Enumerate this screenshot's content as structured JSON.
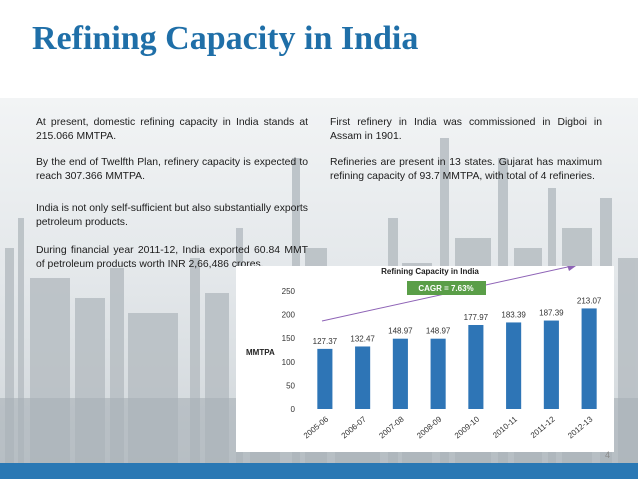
{
  "slide": {
    "title": "Refining Capacity in India",
    "left_column": [
      "At present, domestic refining capacity in India stands at 215.066 MMTPA.",
      "By the end of Twelfth Plan, refinery capacity is expected to reach 307.366 MMTPA.",
      "India is not only self-sufficient but also substantially exports petroleum products.",
      "During financial year 2011-12, India exported 60.84 MMT of petroleum products worth INR 2,66,486 crores."
    ],
    "right_column": [
      "First refinery in India was commissioned in Digboi in Assam in 1901.",
      "Refineries are present in 13 states. Gujarat has maximum refining capacity of 93.7 MMTPA, with total of 4 refineries."
    ],
    "page_number": "4"
  },
  "colors": {
    "title": "#1f6fa8",
    "bar": "#2e75b6",
    "cagr_badge": "#5a9e48",
    "footer_bar": "#2a78b4"
  },
  "chart_data": {
    "type": "bar",
    "title": "Refining Capacity in India",
    "ylabel": "MMTPA",
    "categories": [
      "2005-06",
      "2006-07",
      "2007-08",
      "2008-09",
      "2009-10",
      "2010-11",
      "2011-12",
      "2012-13"
    ],
    "values": [
      127.37,
      132.47,
      148.97,
      148.97,
      177.97,
      183.39,
      187.39,
      213.07
    ],
    "ylim": [
      0,
      250
    ],
    "yticks": [
      0,
      50,
      100,
      150,
      200,
      250
    ],
    "grid": false,
    "annotation": "CAGR = 7.63%"
  }
}
